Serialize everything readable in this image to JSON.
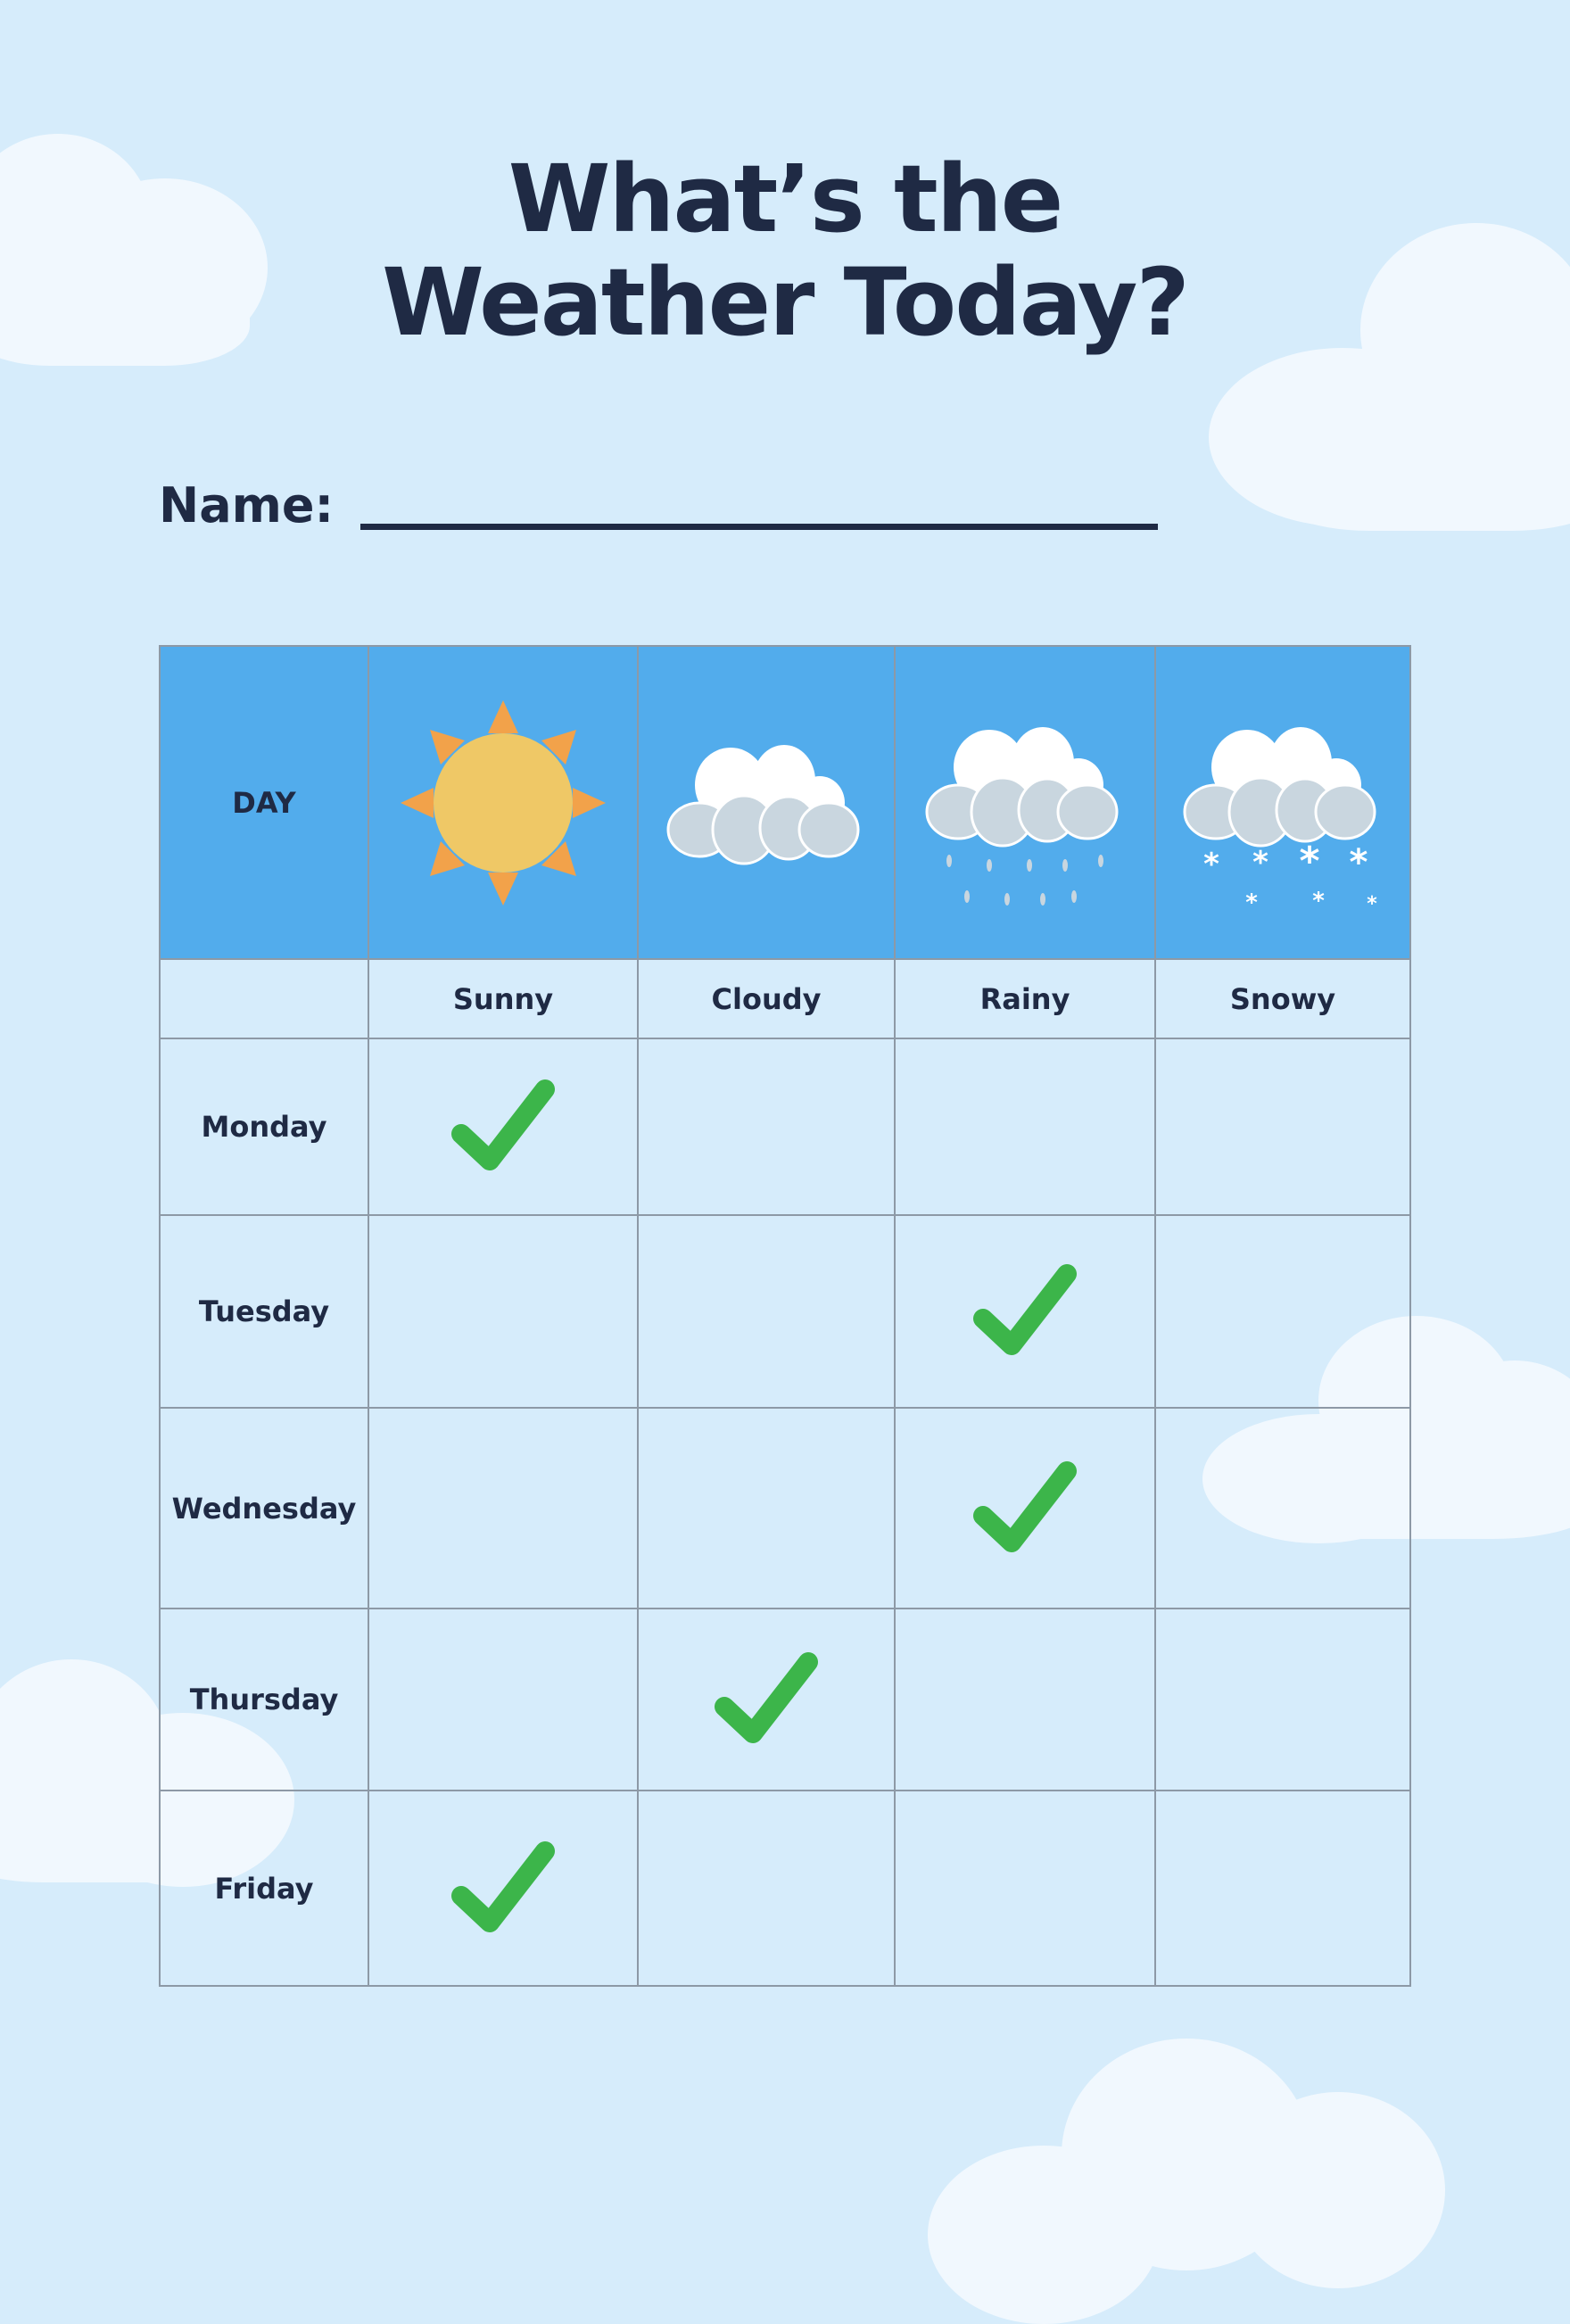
{
  "title_line1": "What’s the",
  "title_line2": "Weather Today?",
  "name_label": "Name:",
  "table": {
    "day_header": "DAY",
    "weather_types": [
      {
        "label": "Sunny",
        "icon": "sun-icon"
      },
      {
        "label": "Cloudy",
        "icon": "cloud-icon"
      },
      {
        "label": "Rainy",
        "icon": "rain-cloud-icon"
      },
      {
        "label": "Snowy",
        "icon": "snow-cloud-icon"
      }
    ],
    "rows": [
      {
        "day": "Monday",
        "checked": "Sunny"
      },
      {
        "day": "Tuesday",
        "checked": "Rainy"
      },
      {
        "day": "Wednesday",
        "checked": "Rainy"
      },
      {
        "day": "Thursday",
        "checked": "Cloudy"
      },
      {
        "day": "Friday",
        "checked": "Sunny"
      }
    ]
  },
  "colors": {
    "background": "#d6ecfb",
    "header": "#52acec",
    "text": "#1f2a44",
    "check": "#3cb54a",
    "sun": "#efc866",
    "sun_rays": "#f2a24a"
  }
}
